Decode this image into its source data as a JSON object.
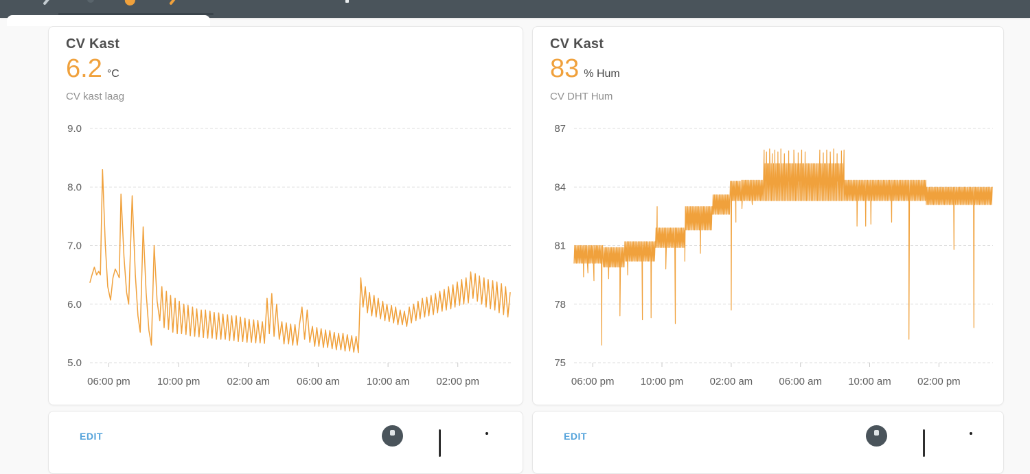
{
  "topbar": {
    "icons": [
      "back-icon",
      "dim-icon",
      "lightning-icon",
      "slash-icon",
      "pin-icon"
    ]
  },
  "colors": {
    "accent_orange": "#f0a13c",
    "topbar_slate": "#4a545b",
    "edit_blue": "#54a3db",
    "grid_gray": "#dcdcdc",
    "axis_text": "#5d5d5d"
  },
  "cards": [
    {
      "title": "CV Kast",
      "value": "6.2",
      "unit": "°C",
      "subtitle": "CV kast laag"
    },
    {
      "title": "CV Kast",
      "value": "83",
      "unit": "% Hum",
      "subtitle": "CV DHT Hum"
    }
  ],
  "bottom_cards": [
    {
      "action": "EDIT"
    },
    {
      "action": "EDIT"
    }
  ],
  "chart_data": [
    {
      "type": "line",
      "title": "CV kast laag",
      "ylabel": "°C",
      "ymin": 5,
      "ymax": 9,
      "yticks": [
        [
          9,
          "9.0"
        ],
        [
          8,
          "8.0"
        ],
        [
          7,
          "7.0"
        ],
        [
          6,
          "6.0"
        ],
        [
          5,
          "5.0"
        ]
      ],
      "xticks": [
        [
          1.08,
          "06:00 pm"
        ],
        [
          5.08,
          "10:00 pm"
        ],
        [
          9.08,
          "02:00 am"
        ],
        [
          13.08,
          "06:00 am"
        ],
        [
          17.08,
          "10:00 am"
        ],
        [
          21.08,
          "02:00 pm"
        ]
      ],
      "tmax": 24.2,
      "grid": "dashed",
      "color": "#f0a13c",
      "stroke": 1.5,
      "points": [
        [
          0,
          6.37
        ],
        [
          0.12,
          6.5
        ],
        [
          0.25,
          6.63
        ],
        [
          0.38,
          6.5
        ],
        [
          0.5,
          6.56
        ],
        [
          0.6,
          6.5
        ],
        [
          0.72,
          8.3
        ],
        [
          0.88,
          7.0
        ],
        [
          1.02,
          6.3
        ],
        [
          1.18,
          6.07
        ],
        [
          1.32,
          6.45
        ],
        [
          1.45,
          6.6
        ],
        [
          1.58,
          6.52
        ],
        [
          1.68,
          6.45
        ],
        [
          1.78,
          7.88
        ],
        [
          1.95,
          6.8
        ],
        [
          2.1,
          6.2
        ],
        [
          2.22,
          6.0
        ],
        [
          2.42,
          7.85
        ],
        [
          2.6,
          6.5
        ],
        [
          2.75,
          5.8
        ],
        [
          2.88,
          5.52
        ],
        [
          3.05,
          7.32
        ],
        [
          3.22,
          6.2
        ],
        [
          3.38,
          5.55
        ],
        [
          3.52,
          5.3
        ],
        [
          3.68,
          7.0
        ],
        [
          3.85,
          6.05
        ],
        [
          4.0,
          5.72
        ],
        [
          4.12,
          6.3
        ],
        [
          4.25,
          5.6
        ],
        [
          4.38,
          6.22
        ],
        [
          4.5,
          5.57
        ],
        [
          4.62,
          6.15
        ],
        [
          4.75,
          5.52
        ],
        [
          4.88,
          6.1
        ],
        [
          5.0,
          5.5
        ],
        [
          5.12,
          6.05
        ],
        [
          5.25,
          5.5
        ],
        [
          5.38,
          6.0
        ],
        [
          5.5,
          5.48
        ],
        [
          5.62,
          5.98
        ],
        [
          5.75,
          5.46
        ],
        [
          5.88,
          5.95
        ],
        [
          6.0,
          5.45
        ],
        [
          6.12,
          5.92
        ],
        [
          6.25,
          5.44
        ],
        [
          6.38,
          5.9
        ],
        [
          6.5,
          5.43
        ],
        [
          6.62,
          5.9
        ],
        [
          6.75,
          5.42
        ],
        [
          6.88,
          5.88
        ],
        [
          7.0,
          5.42
        ],
        [
          7.12,
          5.86
        ],
        [
          7.25,
          5.4
        ],
        [
          7.38,
          5.85
        ],
        [
          7.5,
          5.4
        ],
        [
          7.62,
          5.83
        ],
        [
          7.75,
          5.4
        ],
        [
          7.88,
          5.82
        ],
        [
          8.0,
          5.38
        ],
        [
          8.12,
          5.8
        ],
        [
          8.25,
          5.38
        ],
        [
          8.38,
          5.8
        ],
        [
          8.5,
          5.36
        ],
        [
          8.62,
          5.78
        ],
        [
          8.75,
          5.36
        ],
        [
          8.88,
          5.76
        ],
        [
          9.0,
          5.35
        ],
        [
          9.12,
          5.74
        ],
        [
          9.25,
          5.35
        ],
        [
          9.38,
          5.73
        ],
        [
          9.5,
          5.34
        ],
        [
          9.62,
          5.72
        ],
        [
          9.75,
          5.34
        ],
        [
          9.88,
          5.7
        ],
        [
          10.0,
          5.33
        ],
        [
          10.15,
          6.1
        ],
        [
          10.28,
          5.5
        ],
        [
          10.42,
          6.18
        ],
        [
          10.55,
          5.45
        ],
        [
          10.7,
          6.0
        ],
        [
          10.85,
          5.4
        ],
        [
          11.0,
          5.7
        ],
        [
          11.12,
          5.32
        ],
        [
          11.25,
          5.68
        ],
        [
          11.38,
          5.32
        ],
        [
          11.5,
          5.66
        ],
        [
          11.62,
          5.3
        ],
        [
          11.75,
          5.65
        ],
        [
          11.88,
          5.3
        ],
        [
          12.0,
          5.64
        ],
        [
          12.15,
          5.95
        ],
        [
          12.3,
          5.4
        ],
        [
          12.45,
          5.9
        ],
        [
          12.6,
          5.35
        ],
        [
          12.75,
          5.62
        ],
        [
          12.88,
          5.28
        ],
        [
          13.0,
          5.6
        ],
        [
          13.12,
          5.28
        ],
        [
          13.25,
          5.58
        ],
        [
          13.38,
          5.26
        ],
        [
          13.5,
          5.56
        ],
        [
          13.62,
          5.26
        ],
        [
          13.75,
          5.55
        ],
        [
          13.88,
          5.24
        ],
        [
          14.0,
          5.52
        ],
        [
          14.12,
          5.22
        ],
        [
          14.25,
          5.5
        ],
        [
          14.38,
          5.22
        ],
        [
          14.5,
          5.5
        ],
        [
          14.62,
          5.2
        ],
        [
          14.75,
          5.48
        ],
        [
          14.88,
          5.2
        ],
        [
          15.0,
          5.46
        ],
        [
          15.12,
          5.18
        ],
        [
          15.25,
          5.45
        ],
        [
          15.38,
          5.17
        ],
        [
          15.52,
          6.45
        ],
        [
          15.65,
          5.95
        ],
        [
          15.78,
          6.3
        ],
        [
          15.9,
          5.85
        ],
        [
          16.02,
          6.2
        ],
        [
          16.15,
          5.8
        ],
        [
          16.28,
          6.15
        ],
        [
          16.4,
          5.78
        ],
        [
          16.52,
          6.1
        ],
        [
          16.65,
          5.75
        ],
        [
          16.78,
          6.05
        ],
        [
          16.9,
          5.72
        ],
        [
          17.02,
          6.0
        ],
        [
          17.15,
          5.7
        ],
        [
          17.28,
          5.98
        ],
        [
          17.4,
          5.68
        ],
        [
          17.52,
          5.95
        ],
        [
          17.65,
          5.65
        ],
        [
          17.78,
          5.9
        ],
        [
          17.9,
          5.65
        ],
        [
          18.02,
          5.88
        ],
        [
          18.15,
          5.62
        ],
        [
          18.3,
          5.95
        ],
        [
          18.42,
          5.68
        ],
        [
          18.55,
          6.0
        ],
        [
          18.68,
          5.72
        ],
        [
          18.8,
          6.05
        ],
        [
          18.92,
          5.75
        ],
        [
          19.05,
          6.1
        ],
        [
          19.18,
          5.78
        ],
        [
          19.3,
          6.12
        ],
        [
          19.42,
          5.8
        ],
        [
          19.55,
          6.15
        ],
        [
          19.68,
          5.82
        ],
        [
          19.8,
          6.18
        ],
        [
          19.92,
          5.85
        ],
        [
          20.05,
          6.22
        ],
        [
          20.18,
          5.88
        ],
        [
          20.3,
          6.25
        ],
        [
          20.42,
          5.9
        ],
        [
          20.55,
          6.3
        ],
        [
          20.68,
          5.92
        ],
        [
          20.8,
          6.33
        ],
        [
          20.92,
          5.95
        ],
        [
          21.05,
          6.38
        ],
        [
          21.18,
          5.98
        ],
        [
          21.3,
          6.42
        ],
        [
          21.42,
          6.0
        ],
        [
          21.55,
          6.45
        ],
        [
          21.68,
          6.02
        ],
        [
          21.82,
          6.55
        ],
        [
          21.95,
          6.1
        ],
        [
          22.08,
          6.52
        ],
        [
          22.2,
          6.05
        ],
        [
          22.32,
          6.48
        ],
        [
          22.45,
          6.0
        ],
        [
          22.58,
          6.45
        ],
        [
          22.7,
          5.95
        ],
        [
          22.82,
          6.42
        ],
        [
          22.95,
          5.92
        ],
        [
          23.08,
          6.4
        ],
        [
          23.2,
          5.9
        ],
        [
          23.32,
          6.38
        ],
        [
          23.45,
          5.85
        ],
        [
          23.58,
          6.35
        ],
        [
          23.7,
          5.82
        ],
        [
          23.82,
          6.3
        ],
        [
          23.95,
          5.78
        ],
        [
          24.08,
          6.2
        ]
      ]
    },
    {
      "type": "line",
      "title": "CV DHT Hum",
      "ylabel": "% Hum",
      "ymin": 75,
      "ymax": 87,
      "yticks": [
        [
          87,
          "87"
        ],
        [
          84,
          "84"
        ],
        [
          81,
          "81"
        ],
        [
          78,
          "78"
        ],
        [
          75,
          "75"
        ]
      ],
      "xticks": [
        [
          1.08,
          "06:00 pm"
        ],
        [
          5.08,
          "10:00 pm"
        ],
        [
          9.08,
          "02:00 am"
        ],
        [
          13.08,
          "06:00 am"
        ],
        [
          17.08,
          "10:00 am"
        ],
        [
          21.08,
          "02:00 pm"
        ]
      ],
      "tmax": 24.2,
      "grid": "dashed",
      "color": "#f0a13c",
      "stroke": 1.2,
      "band_segments": [
        [
          0,
          1.7,
          80.1,
          81.0
        ],
        [
          1.7,
          2.9,
          79.9,
          80.9
        ],
        [
          2.9,
          4.7,
          80.2,
          81.2
        ],
        [
          4.7,
          6.4,
          80.9,
          81.9
        ],
        [
          6.4,
          8.0,
          81.8,
          83.0
        ],
        [
          8.0,
          9.0,
          82.6,
          83.6
        ],
        [
          9.0,
          9.65,
          83.3,
          84.3
        ],
        [
          9.65,
          20.35,
          83.3,
          84.35
        ],
        [
          11.0,
          15.6,
          84.3,
          85.2
        ],
        [
          20.35,
          24.2,
          83.1,
          84.0
        ]
      ],
      "up_spikes": [
        [
          4.8,
          83.0
        ],
        [
          10.98,
          85.9
        ],
        [
          11.12,
          85.8
        ],
        [
          11.3,
          85.95
        ],
        [
          11.45,
          85.7
        ],
        [
          11.6,
          85.9
        ],
        [
          11.78,
          85.8
        ],
        [
          11.95,
          85.95
        ],
        [
          12.15,
          85.7
        ],
        [
          12.4,
          85.85
        ],
        [
          12.7,
          85.9
        ],
        [
          12.95,
          85.75
        ],
        [
          13.15,
          85.9
        ],
        [
          13.35,
          85.8
        ],
        [
          14.2,
          85.9
        ],
        [
          14.4,
          85.75
        ],
        [
          14.6,
          85.9
        ],
        [
          14.8,
          85.8
        ],
        [
          15.0,
          85.95
        ],
        [
          15.2,
          85.7
        ],
        [
          15.45,
          85.85
        ],
        [
          15.6,
          85.9
        ]
      ],
      "down_spikes": [
        [
          0.55,
          79.4
        ],
        [
          0.8,
          79.6
        ],
        [
          1.15,
          79.2
        ],
        [
          1.6,
          75.9
        ],
        [
          2.0,
          79.3
        ],
        [
          2.65,
          77.4
        ],
        [
          3.1,
          79.5
        ],
        [
          3.95,
          77.2
        ],
        [
          4.45,
          77.3
        ],
        [
          5.3,
          79.8
        ],
        [
          5.85,
          77.0
        ],
        [
          6.4,
          80.2
        ],
        [
          7.3,
          80.6
        ],
        [
          9.08,
          77.7
        ],
        [
          9.35,
          82.2
        ],
        [
          9.7,
          82.9
        ],
        [
          10.3,
          83.1
        ],
        [
          16.35,
          82.0
        ],
        [
          16.85,
          82.0
        ],
        [
          17.15,
          82.1
        ],
        [
          18.35,
          82.2
        ],
        [
          19.35,
          76.2
        ],
        [
          21.95,
          80.8
        ],
        [
          23.1,
          76.8
        ]
      ]
    }
  ]
}
